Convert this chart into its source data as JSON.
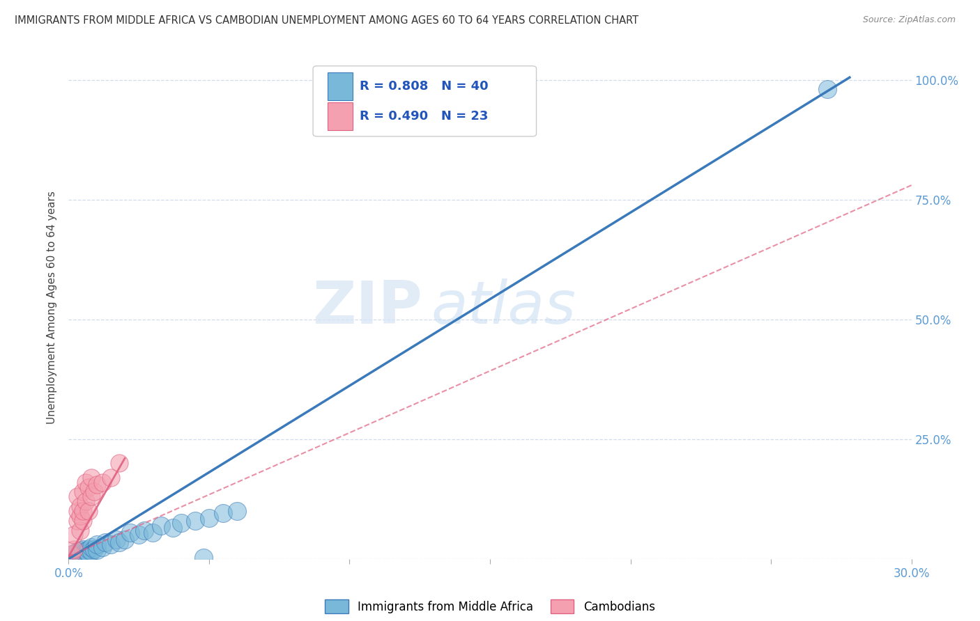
{
  "title": "IMMIGRANTS FROM MIDDLE AFRICA VS CAMBODIAN UNEMPLOYMENT AMONG AGES 60 TO 64 YEARS CORRELATION CHART",
  "source": "Source: ZipAtlas.com",
  "ylabel": "Unemployment Among Ages 60 to 64 years",
  "xlim": [
    0.0,
    0.3
  ],
  "ylim": [
    0.0,
    1.05
  ],
  "xticks": [
    0.0,
    0.05,
    0.1,
    0.15,
    0.2,
    0.25,
    0.3
  ],
  "xticklabels": [
    "0.0%",
    "",
    "",
    "",
    "",
    "",
    "30.0%"
  ],
  "ytick_positions": [
    0.0,
    0.25,
    0.5,
    0.75,
    1.0
  ],
  "yticklabels": [
    "",
    "25.0%",
    "50.0%",
    "75.0%",
    "100.0%"
  ],
  "legend_r1": "R = 0.808   N = 40",
  "legend_r2": "R = 0.490   N = 23",
  "blue_color": "#7ab8d9",
  "pink_color": "#f4a0b0",
  "trend_blue": "#3a7aba",
  "trend_pink": "#e06080",
  "watermark_zip": "ZIP",
  "watermark_atlas": "atlas",
  "blue_scatter": [
    [
      0.001,
      0.005
    ],
    [
      0.002,
      0.008
    ],
    [
      0.002,
      0.012
    ],
    [
      0.003,
      0.005
    ],
    [
      0.003,
      0.01
    ],
    [
      0.003,
      0.015
    ],
    [
      0.004,
      0.008
    ],
    [
      0.004,
      0.012
    ],
    [
      0.004,
      0.018
    ],
    [
      0.005,
      0.01
    ],
    [
      0.005,
      0.015
    ],
    [
      0.005,
      0.02
    ],
    [
      0.006,
      0.01
    ],
    [
      0.006,
      0.015
    ],
    [
      0.007,
      0.012
    ],
    [
      0.007,
      0.02
    ],
    [
      0.008,
      0.015
    ],
    [
      0.008,
      0.025
    ],
    [
      0.009,
      0.02
    ],
    [
      0.01,
      0.018
    ],
    [
      0.01,
      0.03
    ],
    [
      0.012,
      0.025
    ],
    [
      0.013,
      0.035
    ],
    [
      0.015,
      0.03
    ],
    [
      0.017,
      0.04
    ],
    [
      0.018,
      0.035
    ],
    [
      0.02,
      0.04
    ],
    [
      0.022,
      0.055
    ],
    [
      0.025,
      0.05
    ],
    [
      0.027,
      0.06
    ],
    [
      0.03,
      0.055
    ],
    [
      0.033,
      0.07
    ],
    [
      0.037,
      0.065
    ],
    [
      0.04,
      0.075
    ],
    [
      0.045,
      0.08
    ],
    [
      0.048,
      0.002
    ],
    [
      0.05,
      0.085
    ],
    [
      0.055,
      0.095
    ],
    [
      0.06,
      0.1
    ],
    [
      0.27,
      0.98
    ]
  ],
  "pink_scatter": [
    [
      0.001,
      0.01
    ],
    [
      0.002,
      0.02
    ],
    [
      0.002,
      0.05
    ],
    [
      0.003,
      0.08
    ],
    [
      0.003,
      0.1
    ],
    [
      0.003,
      0.13
    ],
    [
      0.004,
      0.06
    ],
    [
      0.004,
      0.09
    ],
    [
      0.004,
      0.11
    ],
    [
      0.005,
      0.08
    ],
    [
      0.005,
      0.1
    ],
    [
      0.005,
      0.14
    ],
    [
      0.006,
      0.12
    ],
    [
      0.006,
      0.16
    ],
    [
      0.007,
      0.1
    ],
    [
      0.007,
      0.15
    ],
    [
      0.008,
      0.13
    ],
    [
      0.008,
      0.17
    ],
    [
      0.009,
      0.14
    ],
    [
      0.01,
      0.155
    ],
    [
      0.012,
      0.16
    ],
    [
      0.015,
      0.17
    ],
    [
      0.018,
      0.2
    ]
  ],
  "blue_trend_x": [
    0.0,
    0.278
  ],
  "blue_trend_y": [
    0.0,
    1.005
  ],
  "pink_trend_x": [
    0.0,
    0.3
  ],
  "pink_trend_y": [
    0.005,
    0.78
  ],
  "pink_short_trend_x": [
    0.0,
    0.02
  ],
  "pink_short_trend_y": [
    0.005,
    0.21
  ]
}
